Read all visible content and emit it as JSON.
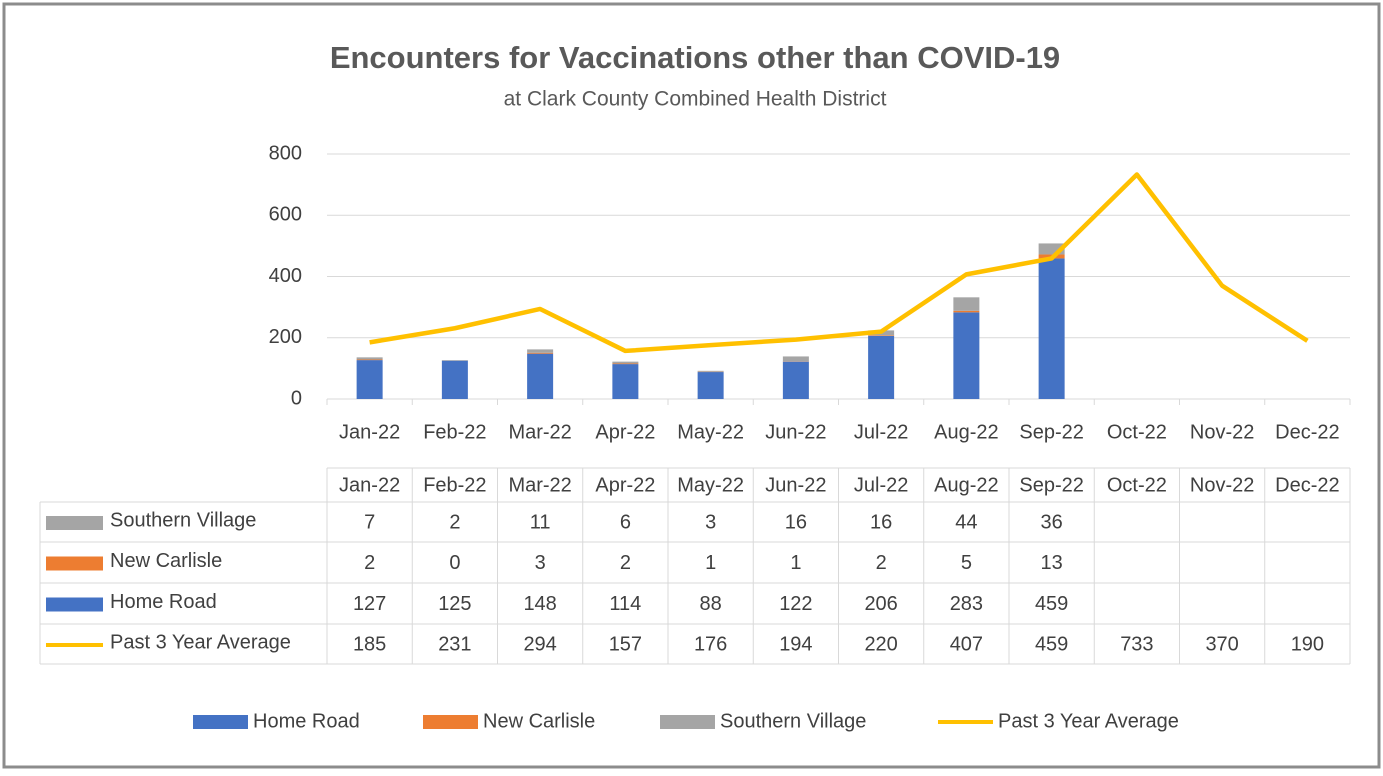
{
  "chart_data": {
    "type": "bar",
    "stacked": true,
    "title": "Encounters for Vaccinations other than COVID-19",
    "subtitle": "at Clark County Combined Health District",
    "categories": [
      "Jan-22",
      "Feb-22",
      "Mar-22",
      "Apr-22",
      "May-22",
      "Jun-22",
      "Jul-22",
      "Aug-22",
      "Sep-22",
      "Oct-22",
      "Nov-22",
      "Dec-22"
    ],
    "series": [
      {
        "name": "Home Road",
        "color": "#4472c4",
        "values": [
          127,
          125,
          148,
          114,
          88,
          122,
          206,
          283,
          459,
          null,
          null,
          null
        ]
      },
      {
        "name": "New Carlisle",
        "color": "#ed7d31",
        "values": [
          2,
          0,
          3,
          2,
          1,
          1,
          2,
          5,
          13,
          null,
          null,
          null
        ]
      },
      {
        "name": "Southern Village",
        "color": "#a5a5a5",
        "values": [
          7,
          2,
          11,
          6,
          3,
          16,
          16,
          44,
          36,
          null,
          null,
          null
        ]
      },
      {
        "name": "Past 3 Year Average",
        "color": "#ffc000",
        "type": "line",
        "values": [
          185,
          231,
          294,
          157,
          176,
          194,
          220,
          407,
          459,
          733,
          370,
          190
        ]
      }
    ],
    "ylim": [
      0,
      800
    ],
    "yticks": [
      0,
      200,
      400,
      600,
      800
    ],
    "grid": true,
    "data_table": true,
    "legend": "bottom"
  }
}
